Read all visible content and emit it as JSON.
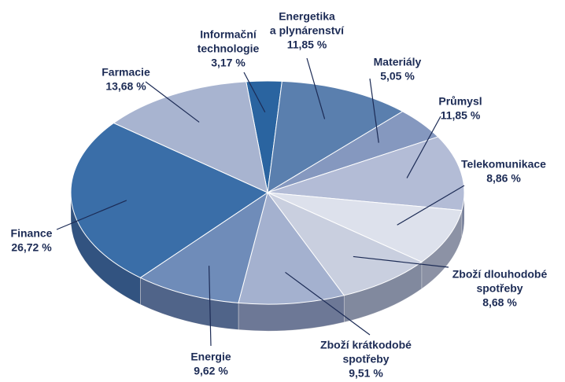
{
  "chart_data": {
    "type": "pie",
    "categories": [
      [
        "Informační",
        "technologie"
      ],
      [
        "Energetika",
        "a plynárenství"
      ],
      [
        "Materiály"
      ],
      [
        "Průmysl"
      ],
      [
        "Telekomunikace"
      ],
      [
        "Zboží dlouhodobé",
        "spotřeby"
      ],
      [
        "Zboží krátkodobé",
        "spotřeby"
      ],
      [
        "Energie"
      ],
      [
        "Finance"
      ],
      [
        "Farmacie"
      ]
    ],
    "values": [
      3.17,
      11.85,
      5.05,
      11.85,
      8.86,
      8.68,
      9.51,
      9.62,
      26.72,
      13.68
    ],
    "value_labels": [
      "3,17 %",
      "11,85 %",
      "5,05 %",
      "11,85 %",
      "8,86 %",
      "8,68 %",
      "9,51 %",
      "9,62 %",
      "26,72 %",
      "13,68 %"
    ],
    "colors": [
      "#2a64a0",
      "#5a7fae",
      "#8598bf",
      "#b3bcd6",
      "#dde1ec",
      "#c9cfdf",
      "#a4b1cf",
      "#6f8cb9",
      "#3a6ea8",
      "#a8b4d0"
    ]
  }
}
